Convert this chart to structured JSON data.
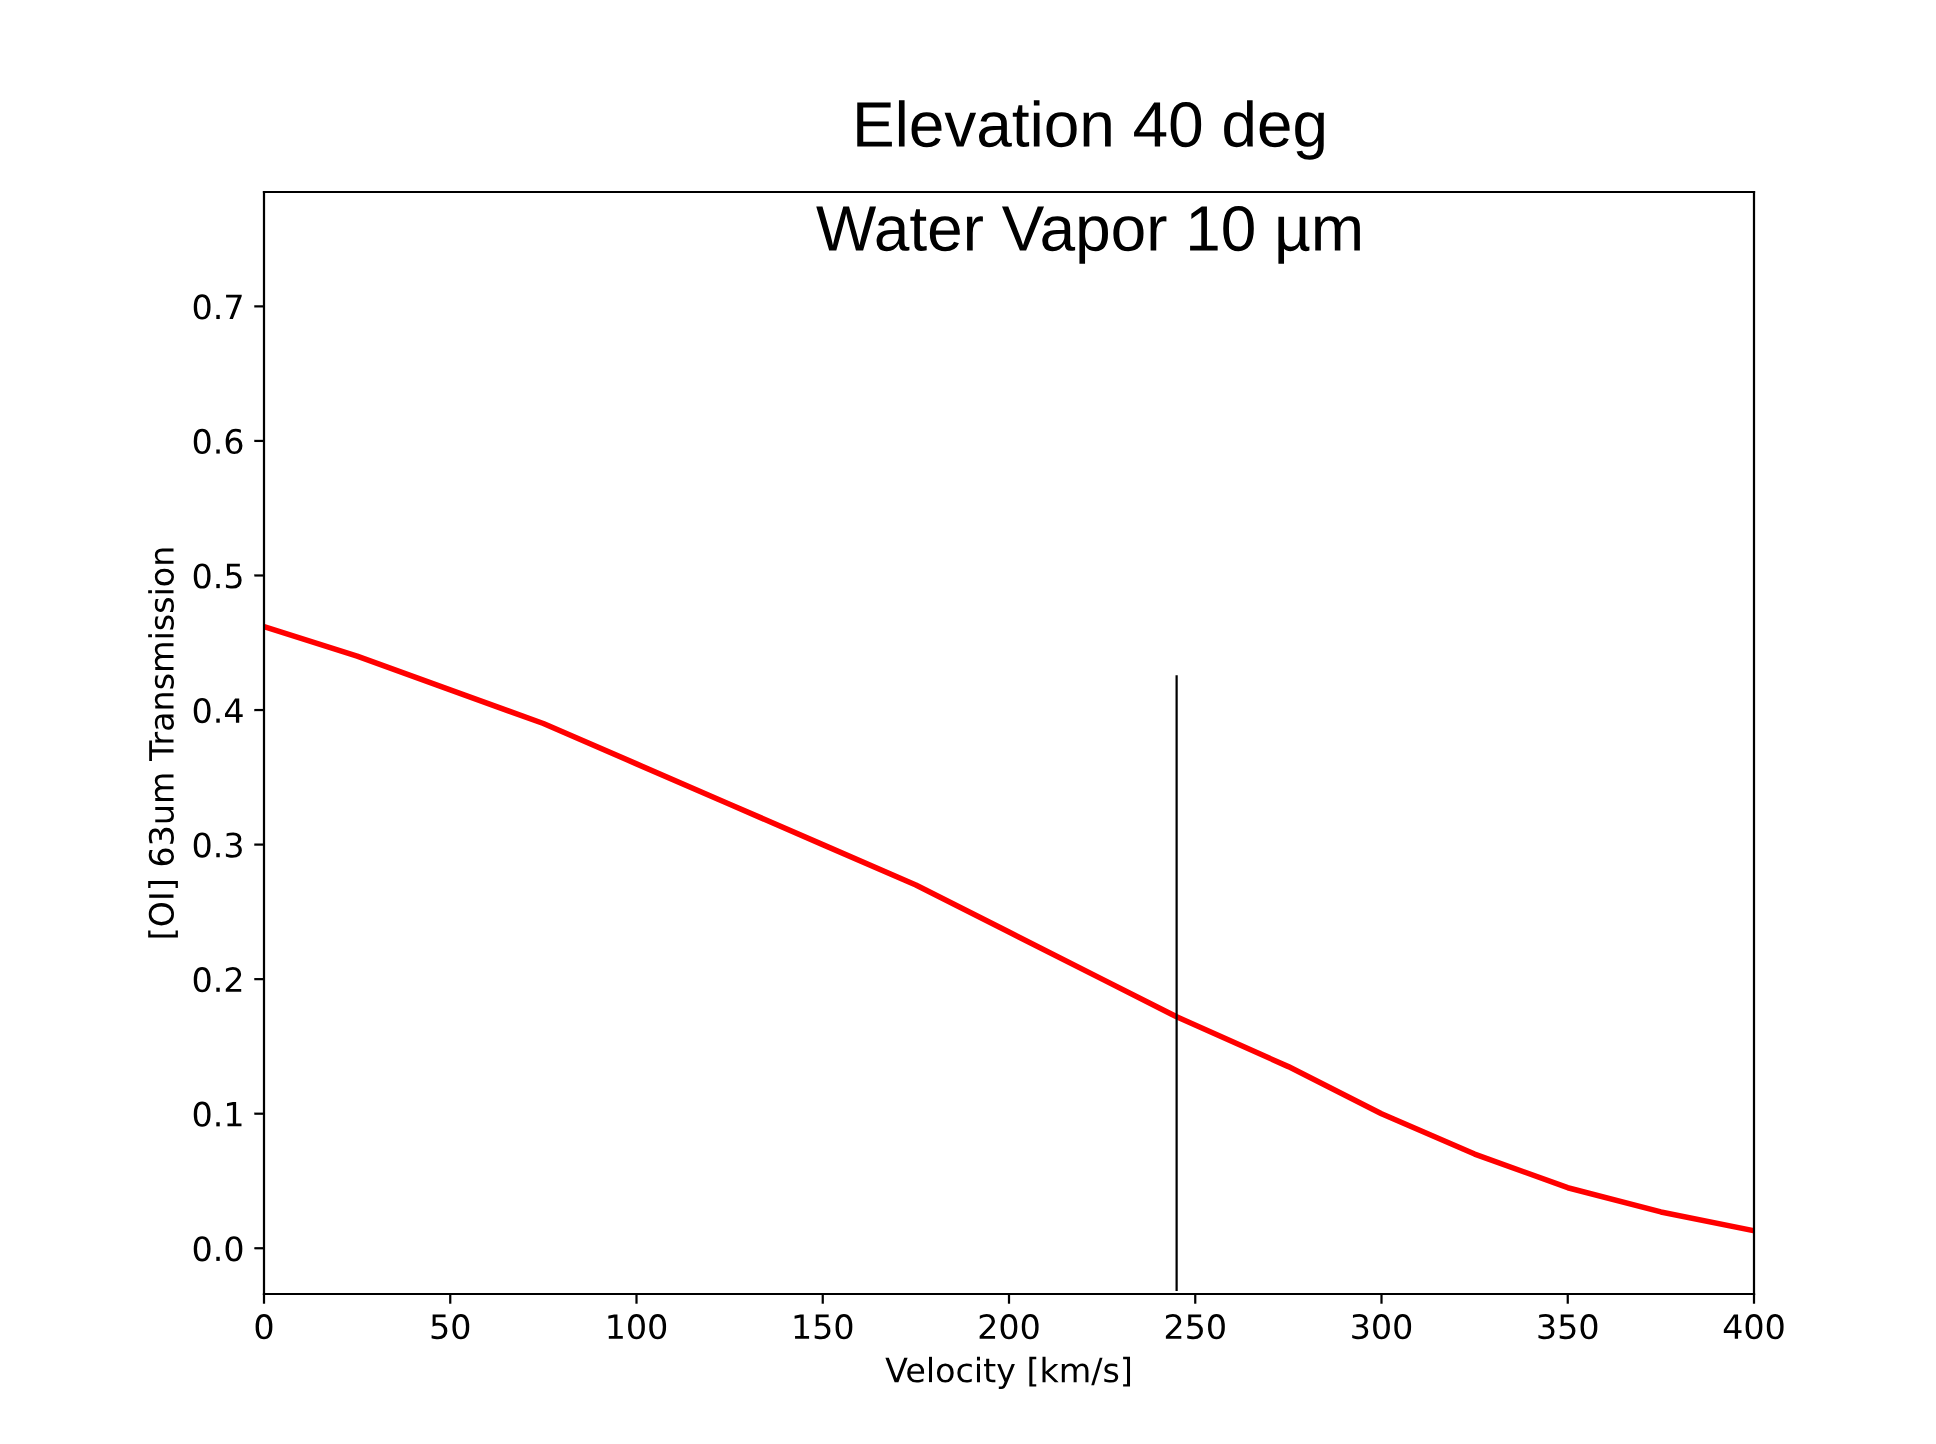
{
  "chart_data": {
    "type": "line",
    "title": "Elevation 40 deg",
    "subtitle": "Water Vapor 10 µm",
    "xlabel": "Velocity [km/s]",
    "ylabel": "[OI] 63um Transmission",
    "series": [
      {
        "color": "#ff0000",
        "x": [
          0,
          25,
          50,
          75,
          100,
          125,
          150,
          175,
          200,
          225,
          245,
          275,
          300,
          325,
          350,
          375,
          400
        ],
        "values": [
          0.462,
          0.44,
          0.415,
          0.39,
          0.36,
          0.33,
          0.3,
          0.27,
          0.235,
          0.2,
          0.172,
          0.135,
          0.1,
          0.07,
          0.045,
          0.027,
          0.013
        ]
      },
      {
        "color": "#000000",
        "x": [
          245,
          245
        ],
        "values": [
          -0.031,
          0.425
        ]
      }
    ],
    "xlim": [
      0,
      400
    ],
    "ylim": [
      -0.034,
      0.785
    ],
    "xticks": [
      0,
      50,
      100,
      150,
      200,
      250,
      300,
      350,
      400
    ],
    "yticks": [
      {
        "value": 0,
        "label": "0.0"
      },
      0.1,
      0.2,
      0.3,
      0.4,
      0.5,
      0.6,
      0.7
    ],
    "grid": false,
    "legend": false
  }
}
